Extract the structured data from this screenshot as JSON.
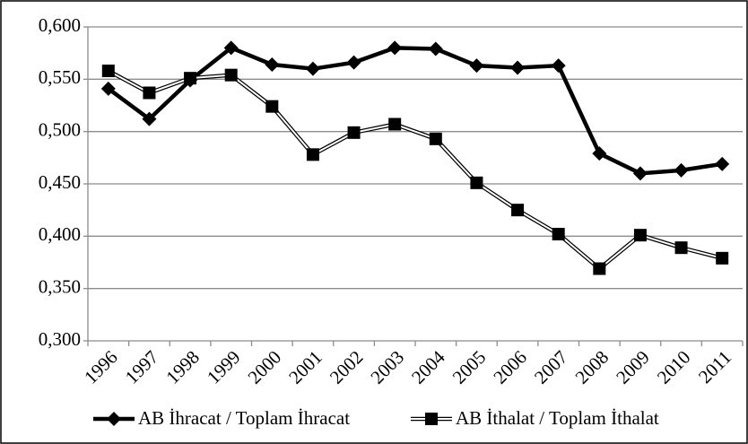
{
  "chart_data": {
    "type": "line",
    "categories": [
      "1996",
      "1997",
      "1998",
      "1999",
      "2000",
      "2001",
      "2002",
      "2003",
      "2004",
      "2005",
      "2006",
      "2007",
      "2008",
      "2009",
      "2010",
      "2011"
    ],
    "series": [
      {
        "name": "AB İhracat / Toplam İhracat",
        "color": "#000000",
        "marker": "diamond",
        "line": "thick",
        "values": [
          0.541,
          0.512,
          0.549,
          0.58,
          0.564,
          0.56,
          0.566,
          0.58,
          0.579,
          0.563,
          0.561,
          0.563,
          0.479,
          0.46,
          0.463,
          0.469
        ]
      },
      {
        "name": "AB İthalat / Toplam İthalat",
        "color": "#000000",
        "marker": "square",
        "line": "double",
        "values": [
          0.558,
          0.537,
          0.551,
          0.554,
          0.524,
          0.478,
          0.499,
          0.507,
          0.493,
          0.451,
          0.425,
          0.402,
          0.369,
          0.401,
          0.389,
          0.379
        ]
      }
    ],
    "ylim": [
      0.3,
      0.6
    ],
    "yticks": [
      {
        "value": 0.3,
        "label": "0,300"
      },
      {
        "value": 0.35,
        "label": "0,350"
      },
      {
        "value": 0.4,
        "label": "0,400"
      },
      {
        "value": 0.45,
        "label": "0,450"
      },
      {
        "value": 0.5,
        "label": "0,500"
      },
      {
        "value": 0.55,
        "label": "0,550"
      },
      {
        "value": 0.6,
        "label": "0,600"
      }
    ],
    "grid": true,
    "legend": "bottom"
  }
}
